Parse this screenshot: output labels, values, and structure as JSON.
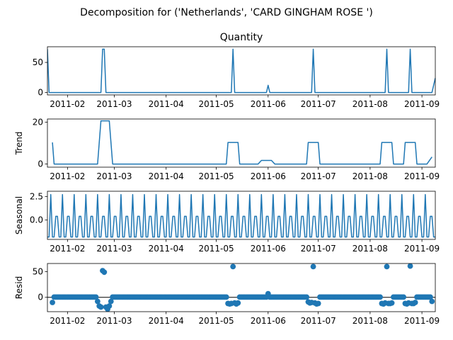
{
  "figure": {
    "suptitle": "Decomposition for ('Netherlands', 'CARD GINGHAM ROSE ')"
  },
  "chart_data": [
    {
      "type": "line",
      "id": "observed",
      "title": "Quantity",
      "ylabel": "",
      "xlim": [
        "2011-01-20",
        "2011-09-09"
      ],
      "ylim": [
        -4,
        76
      ],
      "yticks": [
        0,
        50
      ],
      "xticks": [
        "2011-02",
        "2011-03",
        "2011-04",
        "2011-05",
        "2011-06",
        "2011-07",
        "2011-08",
        "2011-09"
      ],
      "color": "#1f77b4",
      "points": [
        [
          "2011-01-20",
          72
        ],
        [
          "2011-01-21",
          0
        ],
        [
          "2011-02-21",
          0
        ],
        [
          "2011-02-22",
          72
        ],
        [
          "2011-02-23",
          72
        ],
        [
          "2011-02-24",
          0
        ],
        [
          "2011-05-10",
          0
        ],
        [
          "2011-05-11",
          72
        ],
        [
          "2011-05-12",
          0
        ],
        [
          "2011-05-31",
          0
        ],
        [
          "2011-06-01",
          12
        ],
        [
          "2011-06-02",
          0
        ],
        [
          "2011-06-27",
          0
        ],
        [
          "2011-06-28",
          72
        ],
        [
          "2011-06-29",
          0
        ],
        [
          "2011-08-10",
          0
        ],
        [
          "2011-08-11",
          72
        ],
        [
          "2011-08-12",
          0
        ],
        [
          "2011-08-24",
          0
        ],
        [
          "2011-08-25",
          72
        ],
        [
          "2011-08-26",
          0
        ],
        [
          "2011-09-07",
          0
        ],
        [
          "2011-09-09",
          24
        ]
      ]
    },
    {
      "type": "line",
      "id": "trend",
      "title": "",
      "ylabel": "Trend",
      "xlim": [
        "2011-01-20",
        "2011-09-09"
      ],
      "ylim": [
        -1.5,
        21.5
      ],
      "yticks": [
        0,
        20
      ],
      "xticks": [
        "2011-02",
        "2011-03",
        "2011-04",
        "2011-05",
        "2011-06",
        "2011-07",
        "2011-08",
        "2011-09"
      ],
      "color": "#1f77b4",
      "points": [
        [
          "2011-01-23",
          10.3
        ],
        [
          "2011-01-24",
          0
        ],
        [
          "2011-02-19",
          0
        ],
        [
          "2011-02-21",
          20.6
        ],
        [
          "2011-02-26",
          20.6
        ],
        [
          "2011-02-28",
          0
        ],
        [
          "2011-05-07",
          0
        ],
        [
          "2011-05-08",
          10.3
        ],
        [
          "2011-05-14",
          10.3
        ],
        [
          "2011-05-15",
          0
        ],
        [
          "2011-05-26",
          0
        ],
        [
          "2011-05-28",
          1.7
        ],
        [
          "2011-06-03",
          1.7
        ],
        [
          "2011-06-05",
          0
        ],
        [
          "2011-06-24",
          0
        ],
        [
          "2011-06-25",
          10.3
        ],
        [
          "2011-07-01",
          10.3
        ],
        [
          "2011-07-02",
          0
        ],
        [
          "2011-08-07",
          0
        ],
        [
          "2011-08-08",
          10.3
        ],
        [
          "2011-08-14",
          10.3
        ],
        [
          "2011-08-15",
          0
        ],
        [
          "2011-08-21",
          0
        ],
        [
          "2011-08-22",
          10.3
        ],
        [
          "2011-08-28",
          10.3
        ],
        [
          "2011-08-29",
          0
        ],
        [
          "2011-09-04",
          0
        ],
        [
          "2011-09-07",
          3.4
        ]
      ]
    },
    {
      "type": "line",
      "id": "seasonal",
      "title": "",
      "ylabel": "Seasonal",
      "xlim": [
        "2011-01-20",
        "2011-09-09"
      ],
      "ylim": [
        -2.05,
        3.05
      ],
      "yticks": [
        0.0,
        2.5
      ],
      "ytick_labels": [
        "0.0",
        "2.5"
      ],
      "xticks": [
        "2011-02",
        "2011-03",
        "2011-04",
        "2011-05",
        "2011-06",
        "2011-07",
        "2011-08",
        "2011-09"
      ],
      "color": "#1f77b4",
      "period_days": 7,
      "weekly_pattern": [
        -1.8,
        -1.8,
        2.7,
        -1.8,
        -1.8,
        0.4,
        0.4
      ]
    },
    {
      "type": "scatter",
      "id": "resid",
      "title": "",
      "ylabel": "Resid",
      "xlim": [
        "2011-01-20",
        "2011-09-09"
      ],
      "ylim": [
        -28,
        66
      ],
      "yticks": [
        0,
        50
      ],
      "xticks": [
        "2011-02",
        "2011-03",
        "2011-04",
        "2011-05",
        "2011-06",
        "2011-07",
        "2011-08",
        "2011-09"
      ],
      "color": "#1f77b4",
      "baseline": 0,
      "start": "2011-01-23",
      "end": "2011-09-07",
      "default_value": 0.5,
      "special_points": [
        [
          "2011-01-23",
          -10
        ],
        [
          "2011-02-19",
          -8
        ],
        [
          "2011-02-20",
          -17
        ],
        [
          "2011-02-21",
          -19
        ],
        [
          "2011-02-22",
          52
        ],
        [
          "2011-02-23",
          49
        ],
        [
          "2011-02-24",
          -19
        ],
        [
          "2011-02-25",
          -23
        ],
        [
          "2011-02-26",
          -17
        ],
        [
          "2011-02-27",
          -8
        ],
        [
          "2011-05-08",
          -12
        ],
        [
          "2011-05-09",
          -13
        ],
        [
          "2011-05-10",
          -12
        ],
        [
          "2011-05-11",
          60
        ],
        [
          "2011-05-12",
          -11
        ],
        [
          "2011-05-13",
          -13
        ],
        [
          "2011-05-14",
          -11
        ],
        [
          "2011-06-01",
          7
        ],
        [
          "2011-06-25",
          -9
        ],
        [
          "2011-06-26",
          -11
        ],
        [
          "2011-06-27",
          -10
        ],
        [
          "2011-06-28",
          60
        ],
        [
          "2011-06-29",
          -11
        ],
        [
          "2011-06-30",
          -13
        ],
        [
          "2011-07-01",
          -12
        ],
        [
          "2011-08-08",
          -12
        ],
        [
          "2011-08-09",
          -13
        ],
        [
          "2011-08-10",
          -11
        ],
        [
          "2011-08-11",
          60
        ],
        [
          "2011-08-12",
          -12
        ],
        [
          "2011-08-13",
          -12
        ],
        [
          "2011-08-14",
          -11
        ],
        [
          "2011-08-22",
          -12
        ],
        [
          "2011-08-23",
          -13
        ],
        [
          "2011-08-24",
          -11
        ],
        [
          "2011-08-25",
          61
        ],
        [
          "2011-08-26",
          -12
        ],
        [
          "2011-08-27",
          -12
        ],
        [
          "2011-08-28",
          -10
        ],
        [
          "2011-09-07",
          -8
        ]
      ]
    }
  ]
}
